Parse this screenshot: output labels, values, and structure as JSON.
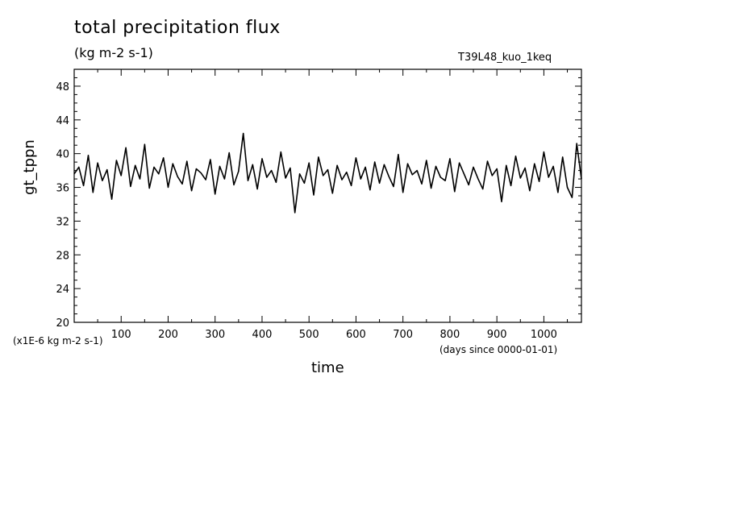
{
  "header": {
    "title": "total precipitation flux",
    "units": "(kg m-2 s-1)",
    "run_name": "T39L48_kuo_1keq"
  },
  "axes": {
    "x_scale_note": "(days since 0000-01-01)",
    "y_scale_note": "(x1E-6 kg m-2 s-1)"
  },
  "chart_data": {
    "type": "line",
    "title": "total precipitation flux",
    "xlabel": "time",
    "ylabel": "gt_tppn",
    "xlim": [
      0,
      1080
    ],
    "ylim": [
      20,
      50
    ],
    "x_ticks": [
      100,
      200,
      300,
      400,
      500,
      600,
      700,
      800,
      900,
      1000
    ],
    "y_ticks": [
      20,
      24,
      28,
      32,
      36,
      40,
      44,
      48
    ],
    "grid": false,
    "series": [
      {
        "x": [
          0,
          10,
          20,
          30,
          40,
          50,
          60,
          70,
          80,
          90,
          100,
          110,
          120,
          130,
          140,
          150,
          160,
          170,
          180,
          190,
          200,
          210,
          220,
          230,
          240,
          250,
          260,
          270,
          280,
          290,
          300,
          310,
          320,
          330,
          340,
          350,
          360,
          370,
          380,
          390,
          400,
          410,
          420,
          430,
          440,
          450,
          460,
          470,
          480,
          490,
          500,
          510,
          520,
          530,
          540,
          550,
          560,
          570,
          580,
          590,
          600,
          610,
          620,
          630,
          640,
          650,
          660,
          670,
          680,
          690,
          700,
          710,
          720,
          730,
          740,
          750,
          760,
          770,
          780,
          790,
          800,
          810,
          820,
          830,
          840,
          850,
          860,
          870,
          880,
          890,
          900,
          910,
          920,
          930,
          940,
          950,
          960,
          970,
          980,
          990,
          1000,
          1010,
          1020,
          1030,
          1040,
          1050,
          1060,
          1070,
          1080
        ],
        "values": [
          37.6,
          38.4,
          36.2,
          39.8,
          35.4,
          38.9,
          36.8,
          38.1,
          34.6,
          39.2,
          37.4,
          40.7,
          36.1,
          38.6,
          37.0,
          41.1,
          35.9,
          38.4,
          37.6,
          39.5,
          36.0,
          38.8,
          37.3,
          36.4,
          39.1,
          35.6,
          38.2,
          37.7,
          36.9,
          39.3,
          35.2,
          38.5,
          37.0,
          40.1,
          36.3,
          37.9,
          42.4,
          36.8,
          38.7,
          35.8,
          39.4,
          37.2,
          38.0,
          36.6,
          40.2,
          37.1,
          38.3,
          33.0,
          37.6,
          36.5,
          38.9,
          35.1,
          39.6,
          37.4,
          38.1,
          35.3,
          38.6,
          36.9,
          37.8,
          36.2,
          39.5,
          37.0,
          38.4,
          35.7,
          39.0,
          36.5,
          38.7,
          37.3,
          36.1,
          39.9,
          35.4,
          38.8,
          37.5,
          38.0,
          36.4,
          39.2,
          35.9,
          38.5,
          37.2,
          36.8,
          39.4,
          35.5,
          38.9,
          37.6,
          36.3,
          38.4,
          37.0,
          35.8,
          39.1,
          37.4,
          38.2,
          34.3,
          38.6,
          36.2,
          39.7,
          37.1,
          38.3,
          35.6,
          38.8,
          36.7,
          40.2,
          37.2,
          38.5,
          35.4,
          39.6,
          36.0,
          34.8,
          41.2,
          37.0
        ]
      }
    ]
  }
}
